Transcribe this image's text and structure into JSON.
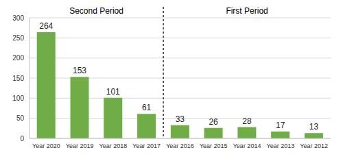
{
  "chart_data": {
    "type": "bar",
    "categories": [
      "Year 2020",
      "Year 2019",
      "Year 2018",
      "Year 2017",
      "Year 2016",
      "Year 2015",
      "Year 2014",
      "Year 2013",
      "Year 2012"
    ],
    "values": [
      264,
      153,
      101,
      61,
      33,
      26,
      28,
      17,
      13
    ],
    "color": "#70ad47",
    "ylim": [
      0,
      300
    ],
    "yticks": [
      0,
      50,
      100,
      150,
      200,
      250,
      300
    ],
    "grid": true,
    "data_labels": true,
    "annotations": [
      "Second Period",
      "First Period"
    ]
  }
}
